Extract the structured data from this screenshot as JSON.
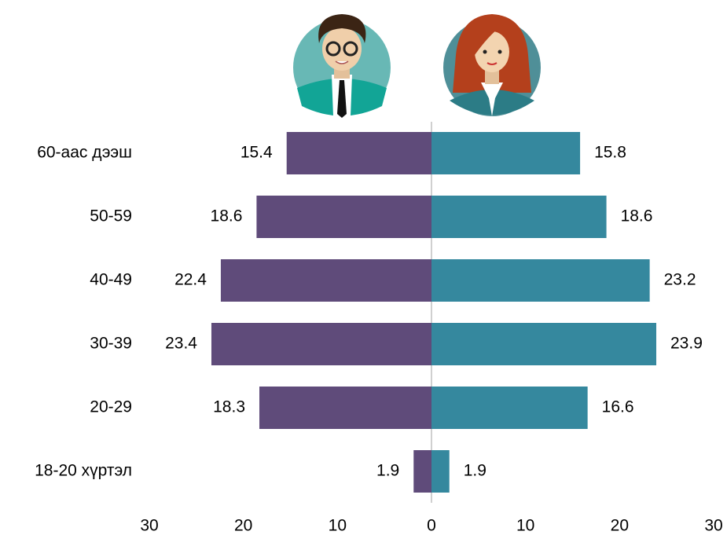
{
  "chart_data": {
    "type": "butterfly-bar",
    "categories": [
      "60-аас дээш",
      "50-59",
      "40-49",
      "30-39",
      "20-29",
      "18-20 хүртэл"
    ],
    "series": [
      {
        "color": "#5f4b7a",
        "values": [
          15.4,
          18.6,
          22.4,
          23.4,
          18.3,
          1.9
        ]
      },
      {
        "color": "#35889e",
        "values": [
          15.8,
          18.6,
          23.2,
          23.9,
          16.6,
          1.9
        ]
      }
    ],
    "xlim": [
      -30,
      30
    ],
    "xticks": [
      {
        "value": -30,
        "label": "30",
        "color": "#ff0000"
      },
      {
        "value": -20,
        "label": "20",
        "color": "#ff0000"
      },
      {
        "value": -10,
        "label": "10",
        "color": "#ff0000"
      },
      0,
      10,
      20,
      30
    ]
  }
}
